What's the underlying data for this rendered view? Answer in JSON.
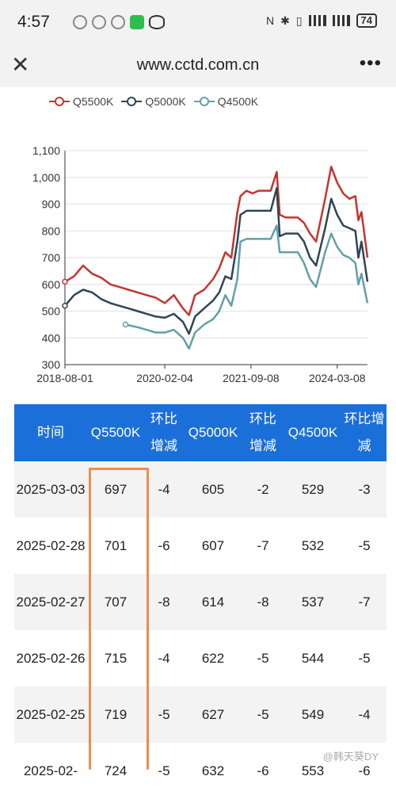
{
  "status": {
    "time": "4:57",
    "battery": "74"
  },
  "browser": {
    "url": "www.cctd.com.cn",
    "close_glyph": "✕",
    "more_glyph": "•••"
  },
  "legend": [
    {
      "label": "Q5500K",
      "color": "#c23531"
    },
    {
      "label": "Q5000K",
      "color": "#2f4554"
    },
    {
      "label": "Q4500K",
      "color": "#61a0a8"
    }
  ],
  "chart_data": {
    "type": "line",
    "x_ticks": [
      "2018-08-01",
      "2020-02-04",
      "2021-09-08",
      "2024-03-08"
    ],
    "y_ticks": [
      "300",
      "400",
      "500",
      "600",
      "700",
      "800",
      "900",
      "1,000",
      "1,100"
    ],
    "ylim": [
      300,
      1100
    ],
    "grid": true,
    "legend_position": "top",
    "series": [
      {
        "name": "Q5500K",
        "color": "#c23531",
        "points": [
          [
            0,
            610
          ],
          [
            0.03,
            630
          ],
          [
            0.06,
            670
          ],
          [
            0.09,
            640
          ],
          [
            0.12,
            625
          ],
          [
            0.15,
            600
          ],
          [
            0.18,
            590
          ],
          [
            0.21,
            580
          ],
          [
            0.24,
            570
          ],
          [
            0.27,
            560
          ],
          [
            0.3,
            550
          ],
          [
            0.33,
            530
          ],
          [
            0.36,
            560
          ],
          [
            0.39,
            510
          ],
          [
            0.41,
            485
          ],
          [
            0.43,
            560
          ],
          [
            0.46,
            580
          ],
          [
            0.49,
            620
          ],
          [
            0.51,
            660
          ],
          [
            0.53,
            720
          ],
          [
            0.55,
            700
          ],
          [
            0.57,
            870
          ],
          [
            0.58,
            930
          ],
          [
            0.6,
            950
          ],
          [
            0.62,
            940
          ],
          [
            0.64,
            950
          ],
          [
            0.66,
            950
          ],
          [
            0.68,
            950
          ],
          [
            0.7,
            1020
          ],
          [
            0.71,
            860
          ],
          [
            0.73,
            850
          ],
          [
            0.75,
            850
          ],
          [
            0.77,
            850
          ],
          [
            0.79,
            830
          ],
          [
            0.81,
            790
          ],
          [
            0.83,
            760
          ],
          [
            0.86,
            920
          ],
          [
            0.88,
            1040
          ],
          [
            0.9,
            980
          ],
          [
            0.92,
            940
          ],
          [
            0.94,
            920
          ],
          [
            0.96,
            930
          ],
          [
            0.97,
            840
          ],
          [
            0.98,
            870
          ],
          [
            1.0,
            700
          ]
        ]
      },
      {
        "name": "Q5000K",
        "color": "#2f4554",
        "points": [
          [
            0,
            520
          ],
          [
            0.03,
            560
          ],
          [
            0.06,
            580
          ],
          [
            0.09,
            570
          ],
          [
            0.12,
            545
          ],
          [
            0.15,
            530
          ],
          [
            0.18,
            520
          ],
          [
            0.21,
            510
          ],
          [
            0.24,
            500
          ],
          [
            0.27,
            490
          ],
          [
            0.3,
            480
          ],
          [
            0.33,
            475
          ],
          [
            0.36,
            490
          ],
          [
            0.39,
            460
          ],
          [
            0.41,
            415
          ],
          [
            0.43,
            480
          ],
          [
            0.46,
            510
          ],
          [
            0.49,
            540
          ],
          [
            0.51,
            570
          ],
          [
            0.53,
            630
          ],
          [
            0.55,
            620
          ],
          [
            0.57,
            760
          ],
          [
            0.58,
            860
          ],
          [
            0.6,
            875
          ],
          [
            0.62,
            875
          ],
          [
            0.64,
            875
          ],
          [
            0.66,
            875
          ],
          [
            0.68,
            875
          ],
          [
            0.7,
            960
          ],
          [
            0.71,
            780
          ],
          [
            0.73,
            790
          ],
          [
            0.75,
            790
          ],
          [
            0.77,
            790
          ],
          [
            0.79,
            760
          ],
          [
            0.81,
            700
          ],
          [
            0.83,
            670
          ],
          [
            0.86,
            810
          ],
          [
            0.88,
            920
          ],
          [
            0.9,
            860
          ],
          [
            0.92,
            820
          ],
          [
            0.94,
            810
          ],
          [
            0.96,
            800
          ],
          [
            0.97,
            700
          ],
          [
            0.98,
            760
          ],
          [
            1.0,
            610
          ]
        ]
      },
      {
        "name": "Q4500K",
        "color": "#61a0a8",
        "points": [
          [
            0.2,
            450
          ],
          [
            0.22,
            445
          ],
          [
            0.24,
            440
          ],
          [
            0.27,
            430
          ],
          [
            0.3,
            420
          ],
          [
            0.33,
            420
          ],
          [
            0.36,
            430
          ],
          [
            0.39,
            400
          ],
          [
            0.41,
            360
          ],
          [
            0.43,
            420
          ],
          [
            0.46,
            450
          ],
          [
            0.49,
            470
          ],
          [
            0.51,
            500
          ],
          [
            0.53,
            560
          ],
          [
            0.55,
            520
          ],
          [
            0.57,
            620
          ],
          [
            0.58,
            760
          ],
          [
            0.6,
            770
          ],
          [
            0.62,
            770
          ],
          [
            0.64,
            770
          ],
          [
            0.66,
            770
          ],
          [
            0.68,
            770
          ],
          [
            0.7,
            820
          ],
          [
            0.71,
            720
          ],
          [
            0.73,
            720
          ],
          [
            0.75,
            720
          ],
          [
            0.77,
            720
          ],
          [
            0.79,
            680
          ],
          [
            0.81,
            620
          ],
          [
            0.83,
            590
          ],
          [
            0.86,
            720
          ],
          [
            0.88,
            790
          ],
          [
            0.9,
            740
          ],
          [
            0.92,
            710
          ],
          [
            0.94,
            700
          ],
          [
            0.96,
            680
          ],
          [
            0.97,
            600
          ],
          [
            0.98,
            640
          ],
          [
            1.0,
            530
          ]
        ]
      }
    ]
  },
  "table": {
    "headers": [
      "时间",
      "Q5500K",
      "环比增减",
      "Q5000K",
      "环比增减",
      "Q4500K",
      "环比增减"
    ],
    "rows": [
      [
        "2025-03-03",
        "697",
        "-4",
        "605",
        "-2",
        "529",
        "-3"
      ],
      [
        "2025-02-28",
        "701",
        "-6",
        "607",
        "-7",
        "532",
        "-5"
      ],
      [
        "2025-02-27",
        "707",
        "-8",
        "614",
        "-8",
        "537",
        "-7"
      ],
      [
        "2025-02-26",
        "715",
        "-4",
        "622",
        "-5",
        "544",
        "-5"
      ],
      [
        "2025-02-25",
        "719",
        "-5",
        "627",
        "-5",
        "549",
        "-4"
      ],
      [
        "2025-02-",
        "724",
        "-5",
        "632",
        "-6",
        "553",
        "-6"
      ]
    ]
  },
  "watermark": "@韩天葵DY"
}
